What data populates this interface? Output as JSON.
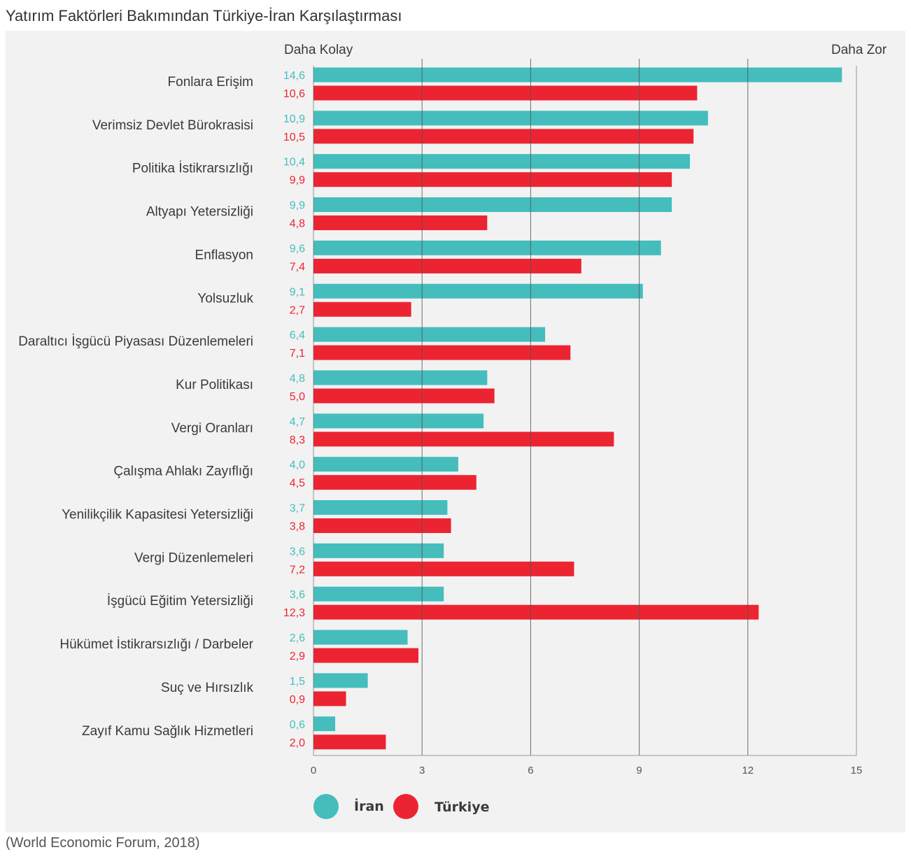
{
  "title": "Yatırım Faktörleri Bakımından Türkiye-İran Karşılaştırması",
  "source": "(World Economic Forum, 2018)",
  "colors": {
    "iran": "#45bdbd",
    "turkiye": "#ec2432",
    "grid": "#555555",
    "panel": "#f2f2f2"
  },
  "chart_data": {
    "type": "bar",
    "orientation": "horizontal",
    "edge_left": "Daha Kolay",
    "edge_right": "Daha Zor",
    "xlim": [
      0,
      15
    ],
    "xticks": [
      0,
      3,
      6,
      9,
      12,
      15
    ],
    "legend_position": "bottom",
    "categories": [
      "Fonlara Erişim",
      "Verimsiz Devlet Bürokrasisi",
      "Politika İstikrarsızlığı",
      "Altyapı Yetersizliği",
      "Enflasyon",
      "Yolsuzluk",
      "Daraltıcı İşgücü Piyasası Düzenlemeleri",
      "Kur Politikası",
      "Vergi Oranları",
      "Çalışma Ahlakı Zayıflığı",
      "Yenilikçilik Kapasitesi Yetersizliği",
      "Vergi Düzenlemeleri",
      "İşgücü Eğitim Yetersizliği",
      "Hükümet İstikrarsızlığı / Darbeler",
      "Suç ve Hırsızlık",
      "Zayıf Kamu Sağlık Hizmetleri"
    ],
    "series": [
      {
        "name": "İran",
        "color": "#45bdbd",
        "values": [
          14.6,
          10.9,
          10.4,
          9.9,
          9.6,
          9.1,
          6.4,
          4.8,
          4.7,
          4.0,
          3.7,
          3.6,
          3.6,
          2.6,
          1.5,
          0.6
        ],
        "labels": [
          "14,6",
          "10,9",
          "10,4",
          "9,9",
          "9,6",
          "9,1",
          "6,4",
          "4,8",
          "4,7",
          "4,0",
          "3,7",
          "3,6",
          "3,6",
          "2,6",
          "1,5",
          "0,6"
        ]
      },
      {
        "name": "Türkiye",
        "color": "#ec2432",
        "values": [
          10.6,
          10.5,
          9.9,
          4.8,
          7.4,
          2.7,
          7.1,
          5.0,
          8.3,
          4.5,
          3.8,
          7.2,
          12.3,
          2.9,
          0.9,
          2.0
        ],
        "labels": [
          "10,6",
          "10,5",
          "9,9",
          "4,8",
          "7,4",
          "2,7",
          "7,1",
          "5,0",
          "8,3",
          "4,5",
          "3,8",
          "7,2",
          "12,3",
          "2,9",
          "0,9",
          "2,0"
        ]
      }
    ]
  }
}
